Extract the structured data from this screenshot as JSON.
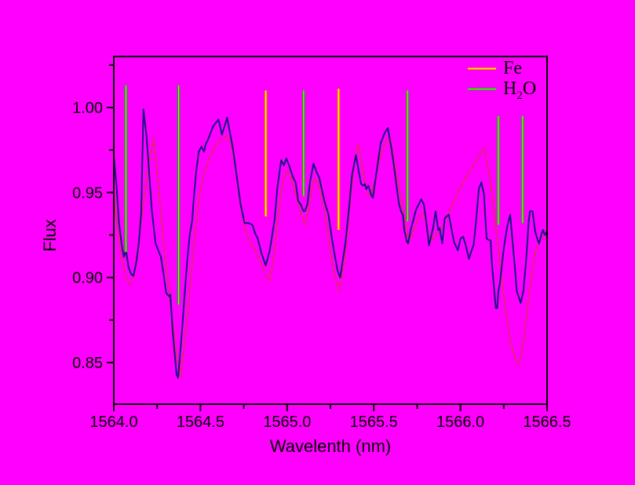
{
  "chart_data": {
    "type": "line",
    "title": "",
    "xlabel": "Wavelenth (nm)",
    "ylabel": "Flux",
    "xlim": [
      1564.0,
      1566.5
    ],
    "ylim": [
      0.8255,
      1.03
    ],
    "grid": false,
    "background_color": "#ff00ff",
    "frame_color": "#000000",
    "x_ticks": {
      "major": [
        1564.0,
        1564.5,
        1565.0,
        1565.5,
        1566.0,
        1566.5
      ],
      "minor": [
        1564.25,
        1564.75,
        1565.25,
        1565.75,
        1566.25
      ],
      "labels": [
        "1564.0",
        "1564.5",
        "1565.0",
        "1565.5",
        "1566.0",
        "1566.5"
      ]
    },
    "y_ticks": {
      "major": [
        1.0,
        0.95,
        0.9,
        0.85
      ],
      "minor": [
        1.025,
        0.975,
        0.925,
        0.875
      ],
      "labels": [
        "1.00",
        "0.95",
        "0.90",
        "0.85"
      ]
    },
    "legend": {
      "position": "top-right",
      "entries": [
        {
          "label": "Fe",
          "pre": "Fe",
          "sub": "",
          "post": "",
          "line_color": "#ff7f00",
          "line_core": "#ffff00"
        },
        {
          "label": "H2O",
          "pre": "H",
          "sub": "2",
          "post": "O",
          "line_color": "#00aa33",
          "line_core": "#ccdd00"
        }
      ]
    },
    "marker_lines": {
      "fe": [
        {
          "wl": 1564.877,
          "top": 1.01,
          "bottom": 0.936
        },
        {
          "wl": 1565.297,
          "top": 1.011,
          "bottom": 0.928
        }
      ],
      "h2o": [
        {
          "wl": 1564.07,
          "top": 1.013,
          "bottom": 0.915
        },
        {
          "wl": 1564.374,
          "top": 1.013,
          "bottom": 0.884
        },
        {
          "wl": 1565.095,
          "top": 1.01,
          "bottom": 0.948
        },
        {
          "wl": 1565.695,
          "top": 1.01,
          "bottom": 0.933
        },
        {
          "wl": 1566.219,
          "top": 0.995,
          "bottom": 0.931
        },
        {
          "wl": 1566.359,
          "top": 0.995,
          "bottom": 0.932
        }
      ]
    },
    "series": [
      {
        "name": "model spectrum",
        "style": "dashed",
        "color": "#e02858",
        "width": 2,
        "dash": [
          5,
          4
        ],
        "points": [
          [
            1564.0,
            0.95
          ],
          [
            1564.02,
            0.93
          ],
          [
            1564.045,
            0.912
          ],
          [
            1564.07,
            0.9
          ],
          [
            1564.095,
            0.896
          ],
          [
            1564.12,
            0.904
          ],
          [
            1564.145,
            0.922
          ],
          [
            1564.17,
            0.942
          ],
          [
            1564.2,
            0.965
          ],
          [
            1564.23,
            0.982
          ],
          [
            1564.25,
            0.962
          ],
          [
            1564.275,
            0.935
          ],
          [
            1564.3,
            0.908
          ],
          [
            1564.33,
            0.882
          ],
          [
            1564.36,
            0.856
          ],
          [
            1564.385,
            0.842
          ],
          [
            1564.41,
            0.862
          ],
          [
            1564.44,
            0.895
          ],
          [
            1564.47,
            0.928
          ],
          [
            1564.5,
            0.952
          ],
          [
            1564.53,
            0.964
          ],
          [
            1564.56,
            0.972
          ],
          [
            1564.59,
            0.978
          ],
          [
            1564.62,
            0.981
          ],
          [
            1564.65,
            0.983
          ],
          [
            1564.675,
            0.98
          ],
          [
            1564.7,
            0.965
          ],
          [
            1564.725,
            0.947
          ],
          [
            1564.75,
            0.932
          ],
          [
            1564.775,
            0.923
          ],
          [
            1564.8,
            0.919
          ],
          [
            1564.825,
            0.914
          ],
          [
            1564.85,
            0.908
          ],
          [
            1564.875,
            0.902
          ],
          [
            1564.9,
            0.898
          ],
          [
            1564.925,
            0.913
          ],
          [
            1564.95,
            0.938
          ],
          [
            1564.975,
            0.956
          ],
          [
            1565.0,
            0.963
          ],
          [
            1565.025,
            0.958
          ],
          [
            1565.055,
            0.947
          ],
          [
            1565.085,
            0.936
          ],
          [
            1565.105,
            0.931
          ],
          [
            1565.13,
            0.944
          ],
          [
            1565.155,
            0.958
          ],
          [
            1565.18,
            0.956
          ],
          [
            1565.21,
            0.942
          ],
          [
            1565.24,
            0.922
          ],
          [
            1565.27,
            0.903
          ],
          [
            1565.3,
            0.892
          ],
          [
            1565.33,
            0.908
          ],
          [
            1565.36,
            0.94
          ],
          [
            1565.39,
            0.97
          ],
          [
            1565.41,
            0.978
          ],
          [
            1565.435,
            0.965
          ],
          [
            1565.46,
            0.95
          ],
          [
            1565.48,
            0.948
          ],
          [
            1565.51,
            0.958
          ],
          [
            1565.54,
            0.972
          ],
          [
            1565.57,
            0.98
          ],
          [
            1565.595,
            0.982
          ],
          [
            1565.62,
            0.968
          ],
          [
            1565.65,
            0.95
          ],
          [
            1565.68,
            0.932
          ],
          [
            1565.705,
            0.921
          ],
          [
            1565.73,
            0.928
          ],
          [
            1565.76,
            0.936
          ],
          [
            1565.79,
            0.938
          ],
          [
            1565.815,
            0.925
          ],
          [
            1565.84,
            0.922
          ],
          [
            1565.87,
            0.928
          ],
          [
            1565.9,
            0.93
          ],
          [
            1565.93,
            0.938
          ],
          [
            1565.96,
            0.944
          ],
          [
            1565.99,
            0.951
          ],
          [
            1566.02,
            0.957
          ],
          [
            1566.05,
            0.962
          ],
          [
            1566.08,
            0.967
          ],
          [
            1566.11,
            0.972
          ],
          [
            1566.14,
            0.976
          ],
          [
            1566.165,
            0.962
          ],
          [
            1566.19,
            0.942
          ],
          [
            1566.215,
            0.92
          ],
          [
            1566.24,
            0.898
          ],
          [
            1566.265,
            0.878
          ],
          [
            1566.29,
            0.862
          ],
          [
            1566.315,
            0.852
          ],
          [
            1566.34,
            0.849
          ],
          [
            1566.365,
            0.862
          ],
          [
            1566.39,
            0.885
          ],
          [
            1566.415,
            0.905
          ],
          [
            1566.44,
            0.918
          ],
          [
            1566.465,
            0.923
          ],
          [
            1566.49,
            0.925
          ],
          [
            1566.5,
            0.925
          ]
        ]
      },
      {
        "name": "observed spectrum",
        "style": "solid",
        "color": "#141487",
        "width": 2,
        "dash": null,
        "points": [
          [
            1564.0,
            0.971
          ],
          [
            1564.015,
            0.955
          ],
          [
            1564.03,
            0.932
          ],
          [
            1564.045,
            0.92
          ],
          [
            1564.058,
            0.912
          ],
          [
            1564.07,
            0.916
          ],
          [
            1564.085,
            0.906
          ],
          [
            1564.1,
            0.902
          ],
          [
            1564.113,
            0.901
          ],
          [
            1564.13,
            0.909
          ],
          [
            1564.144,
            0.92
          ],
          [
            1564.158,
            0.938
          ],
          [
            1564.165,
            0.97
          ],
          [
            1564.171,
            0.999
          ],
          [
            1564.18,
            0.991
          ],
          [
            1564.189,
            0.983
          ],
          [
            1564.204,
            0.962
          ],
          [
            1564.219,
            0.94
          ],
          [
            1564.241,
            0.92
          ],
          [
            1564.257,
            0.916
          ],
          [
            1564.272,
            0.912
          ],
          [
            1564.287,
            0.902
          ],
          [
            1564.302,
            0.891
          ],
          [
            1564.317,
            0.889
          ],
          [
            1564.326,
            0.89
          ],
          [
            1564.34,
            0.868
          ],
          [
            1564.362,
            0.843
          ],
          [
            1564.371,
            0.841
          ],
          [
            1564.393,
            0.868
          ],
          [
            1564.408,
            0.889
          ],
          [
            1564.423,
            0.909
          ],
          [
            1564.438,
            0.925
          ],
          [
            1564.453,
            0.934
          ],
          [
            1564.46,
            0.945
          ],
          [
            1564.475,
            0.962
          ],
          [
            1564.49,
            0.974
          ],
          [
            1564.506,
            0.977
          ],
          [
            1564.521,
            0.974
          ],
          [
            1564.529,
            0.978
          ],
          [
            1564.543,
            0.981
          ],
          [
            1564.558,
            0.985
          ],
          [
            1564.574,
            0.989
          ],
          [
            1564.604,
            0.993
          ],
          [
            1564.624,
            0.984
          ],
          [
            1564.654,
            0.994
          ],
          [
            1564.687,
            0.976
          ],
          [
            1564.71,
            0.959
          ],
          [
            1564.732,
            0.943
          ],
          [
            1564.755,
            0.932
          ],
          [
            1564.778,
            0.932
          ],
          [
            1564.8,
            0.931
          ],
          [
            1564.815,
            0.926
          ],
          [
            1564.83,
            0.923
          ],
          [
            1564.853,
            0.914
          ],
          [
            1564.877,
            0.907
          ],
          [
            1564.9,
            0.916
          ],
          [
            1564.928,
            0.934
          ],
          [
            1564.943,
            0.952
          ],
          [
            1564.959,
            0.964
          ],
          [
            1564.966,
            0.969
          ],
          [
            1564.981,
            0.966
          ],
          [
            1564.996,
            0.97
          ],
          [
            1565.011,
            0.966
          ],
          [
            1565.034,
            0.959
          ],
          [
            1565.049,
            0.956
          ],
          [
            1565.064,
            0.945
          ],
          [
            1565.079,
            0.943
          ],
          [
            1565.094,
            0.939
          ],
          [
            1565.102,
            0.939
          ],
          [
            1565.117,
            0.943
          ],
          [
            1565.132,
            0.956
          ],
          [
            1565.152,
            0.967
          ],
          [
            1565.17,
            0.962
          ],
          [
            1565.185,
            0.959
          ],
          [
            1565.215,
            0.945
          ],
          [
            1565.238,
            0.937
          ],
          [
            1565.26,
            0.922
          ],
          [
            1565.275,
            0.913
          ],
          [
            1565.291,
            0.904
          ],
          [
            1565.306,
            0.9
          ],
          [
            1565.336,
            0.92
          ],
          [
            1565.359,
            0.943
          ],
          [
            1565.374,
            0.96
          ],
          [
            1565.397,
            0.972
          ],
          [
            1565.412,
            0.963
          ],
          [
            1565.427,
            0.955
          ],
          [
            1565.439,
            0.954
          ],
          [
            1565.449,
            0.955
          ],
          [
            1565.457,
            0.952
          ],
          [
            1565.469,
            0.954
          ],
          [
            1565.487,
            0.948
          ],
          [
            1565.495,
            0.947
          ],
          [
            1565.517,
            0.963
          ],
          [
            1565.54,
            0.979
          ],
          [
            1565.563,
            0.985
          ],
          [
            1565.581,
            0.988
          ],
          [
            1565.6,
            0.977
          ],
          [
            1565.616,
            0.966
          ],
          [
            1565.631,
            0.954
          ],
          [
            1565.646,
            0.943
          ],
          [
            1565.661,
            0.938
          ],
          [
            1565.668,
            0.937
          ],
          [
            1565.676,
            0.928
          ],
          [
            1565.691,
            0.921
          ],
          [
            1565.698,
            0.92
          ],
          [
            1565.713,
            0.928
          ],
          [
            1565.729,
            0.934
          ],
          [
            1565.744,
            0.94
          ],
          [
            1565.774,
            0.946
          ],
          [
            1565.789,
            0.943
          ],
          [
            1565.804,
            0.932
          ],
          [
            1565.819,
            0.919
          ],
          [
            1565.842,
            0.929
          ],
          [
            1565.857,
            0.939
          ],
          [
            1565.872,
            0.928
          ],
          [
            1565.88,
            0.929
          ],
          [
            1565.895,
            0.92
          ],
          [
            1565.91,
            0.935
          ],
          [
            1565.933,
            0.937
          ],
          [
            1565.963,
            0.921
          ],
          [
            1565.985,
            0.916
          ],
          [
            1566.001,
            0.923
          ],
          [
            1566.016,
            0.924
          ],
          [
            1566.031,
            0.919
          ],
          [
            1566.049,
            0.911
          ],
          [
            1566.068,
            0.917
          ],
          [
            1566.076,
            0.919
          ],
          [
            1566.091,
            0.934
          ],
          [
            1566.106,
            0.952
          ],
          [
            1566.121,
            0.956
          ],
          [
            1566.136,
            0.949
          ],
          [
            1566.151,
            0.923
          ],
          [
            1566.165,
            0.922
          ],
          [
            1566.174,
            0.922
          ],
          [
            1566.182,
            0.908
          ],
          [
            1566.189,
            0.9
          ],
          [
            1566.204,
            0.882
          ],
          [
            1566.212,
            0.882
          ],
          [
            1566.219,
            0.892
          ],
          [
            1566.227,
            0.896
          ],
          [
            1566.25,
            0.917
          ],
          [
            1566.27,
            0.93
          ],
          [
            1566.287,
            0.937
          ],
          [
            1566.31,
            0.911
          ],
          [
            1566.325,
            0.892
          ],
          [
            1566.348,
            0.885
          ],
          [
            1566.363,
            0.892
          ],
          [
            1566.378,
            0.909
          ],
          [
            1566.386,
            0.92
          ],
          [
            1566.393,
            0.932
          ],
          [
            1566.401,
            0.939
          ],
          [
            1566.416,
            0.939
          ],
          [
            1566.431,
            0.927
          ],
          [
            1566.446,
            0.922
          ],
          [
            1566.454,
            0.92
          ],
          [
            1566.469,
            0.926
          ],
          [
            1566.477,
            0.928
          ],
          [
            1566.487,
            0.925
          ],
          [
            1566.5,
            0.927
          ]
        ]
      }
    ]
  }
}
